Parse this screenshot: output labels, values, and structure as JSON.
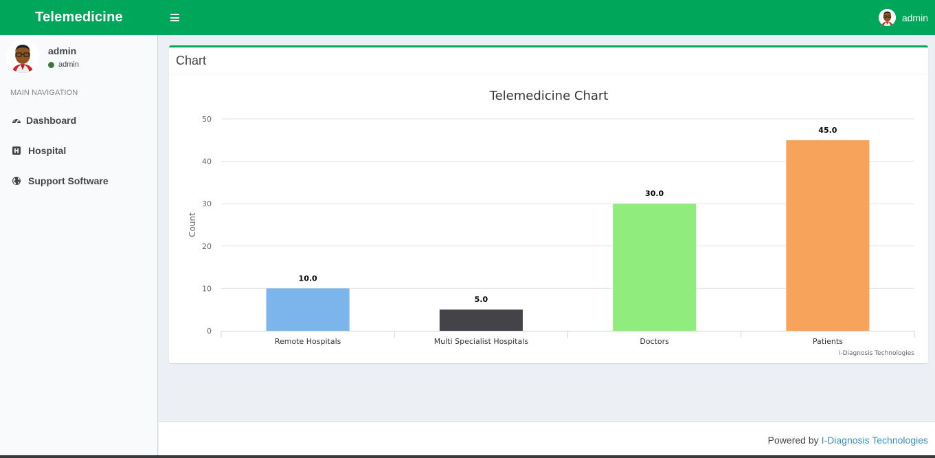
{
  "header": {
    "brand": "Telemedicine",
    "user_name": "admin"
  },
  "sidebar": {
    "user_name": "admin",
    "user_status": "admin",
    "nav_header": "MAIN NAVIGATION",
    "items": [
      {
        "label": "Dashboard",
        "icon": "dashboard-icon"
      },
      {
        "label": "Hospital",
        "icon": "hospital-icon"
      },
      {
        "label": "Support Software",
        "icon": "globe-icon"
      }
    ]
  },
  "box": {
    "title": "Chart"
  },
  "chart_data": {
    "type": "bar",
    "title": "Telemedicine Chart",
    "ylabel": "Count",
    "xlabel": "",
    "categories": [
      "Remote Hospitals",
      "Multi Specialist Hospitals",
      "Doctors",
      "Patients"
    ],
    "values": [
      10.0,
      5.0,
      30.0,
      45.0
    ],
    "value_labels": [
      "10.0",
      "5.0",
      "30.0",
      "45.0"
    ],
    "colors": [
      "#7cb5ec",
      "#434348",
      "#90ed7d",
      "#f7a35c"
    ],
    "ylim": [
      0,
      50
    ],
    "yticks": [
      0,
      10,
      20,
      30,
      40,
      50
    ],
    "grid": true,
    "credits": "i-Diagnosis Technologies"
  },
  "footer": {
    "prefix": "Powered by",
    "link": "I-Diagnosis Technologies"
  }
}
